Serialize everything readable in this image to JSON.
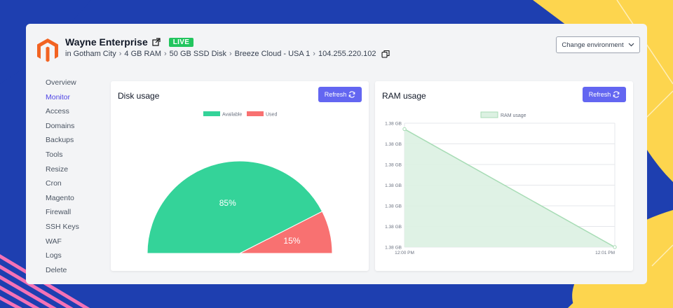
{
  "app": {
    "title": "Wayne Enterprise",
    "status": "LIVE",
    "breadcrumb": [
      "in Gotham City",
      "4 GB RAM",
      "50 GB SSD Disk",
      "Breeze Cloud - USA 1",
      "104.255.220.102"
    ],
    "env_button": "Change environment"
  },
  "sidebar": {
    "items": [
      {
        "label": "Overview"
      },
      {
        "label": "Monitor"
      },
      {
        "label": "Access"
      },
      {
        "label": "Domains"
      },
      {
        "label": "Backups"
      },
      {
        "label": "Tools"
      },
      {
        "label": "Resize"
      },
      {
        "label": "Cron"
      },
      {
        "label": "Magento"
      },
      {
        "label": "Firewall"
      },
      {
        "label": "SSH Keys"
      },
      {
        "label": "WAF"
      },
      {
        "label": "Logs"
      },
      {
        "label": "Delete"
      }
    ],
    "active_index": 1
  },
  "cards": {
    "disk": {
      "title": "Disk usage",
      "refresh": "Refresh"
    },
    "ram": {
      "title": "RAM usage",
      "refresh": "Refresh"
    }
  },
  "colors": {
    "accent": "#6366f1",
    "available": "#34d399",
    "used": "#f87171",
    "ram_line": "#a7dcb5",
    "ram_fill": "#dcf1e2",
    "live": "#22c55e"
  },
  "icons": [
    "external-link-icon",
    "copy-icon",
    "chevron-down-icon",
    "refresh-icon",
    "magento-logo"
  ],
  "chart_data": [
    {
      "type": "pie",
      "variant": "half-doughnut",
      "legend": [
        "Available",
        "Used"
      ],
      "values": [
        85,
        15
      ],
      "labels": [
        "85%",
        "15%"
      ],
      "legend_position": "top"
    },
    {
      "type": "area",
      "legend": [
        "RAM usage"
      ],
      "legend_position": "top",
      "x": [
        "12:00 PM",
        "12:01 PM"
      ],
      "yticks": [
        "1.38 GB",
        "1.38 GB",
        "1.38 GB",
        "1.38 GB",
        "1.38 GB",
        "1.38 GB",
        "1.38 GB"
      ],
      "series": [
        {
          "name": "RAM usage",
          "values": [
            1.0,
            0.0
          ]
        }
      ],
      "ylim": [
        0,
        1.05
      ],
      "grid": true
    }
  ]
}
